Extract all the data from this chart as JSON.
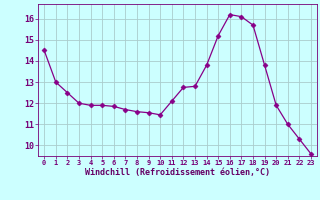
{
  "x": [
    0,
    1,
    2,
    3,
    4,
    5,
    6,
    7,
    8,
    9,
    10,
    11,
    12,
    13,
    14,
    15,
    16,
    17,
    18,
    19,
    20,
    21,
    22,
    23
  ],
  "y": [
    14.5,
    13.0,
    12.5,
    12.0,
    11.9,
    11.9,
    11.85,
    11.7,
    11.6,
    11.55,
    11.45,
    12.1,
    12.75,
    12.8,
    13.8,
    15.2,
    16.2,
    16.1,
    15.7,
    13.8,
    11.9,
    11.0,
    10.3,
    9.6
  ],
  "line_color": "#880088",
  "marker": "D",
  "marker_size": 2.5,
  "bg_color": "#ccffff",
  "grid_color": "#aacccc",
  "xlabel": "Windchill (Refroidissement éolien,°C)",
  "xlabel_color": "#660066",
  "tick_color": "#770077",
  "ylim": [
    9.5,
    16.7
  ],
  "yticks": [
    10,
    11,
    12,
    13,
    14,
    15,
    16
  ],
  "xticks": [
    0,
    1,
    2,
    3,
    4,
    5,
    6,
    7,
    8,
    9,
    10,
    11,
    12,
    13,
    14,
    15,
    16,
    17,
    18,
    19,
    20,
    21,
    22,
    23
  ],
  "spine_color": "#770077",
  "xlim": [
    -0.5,
    23.5
  ]
}
